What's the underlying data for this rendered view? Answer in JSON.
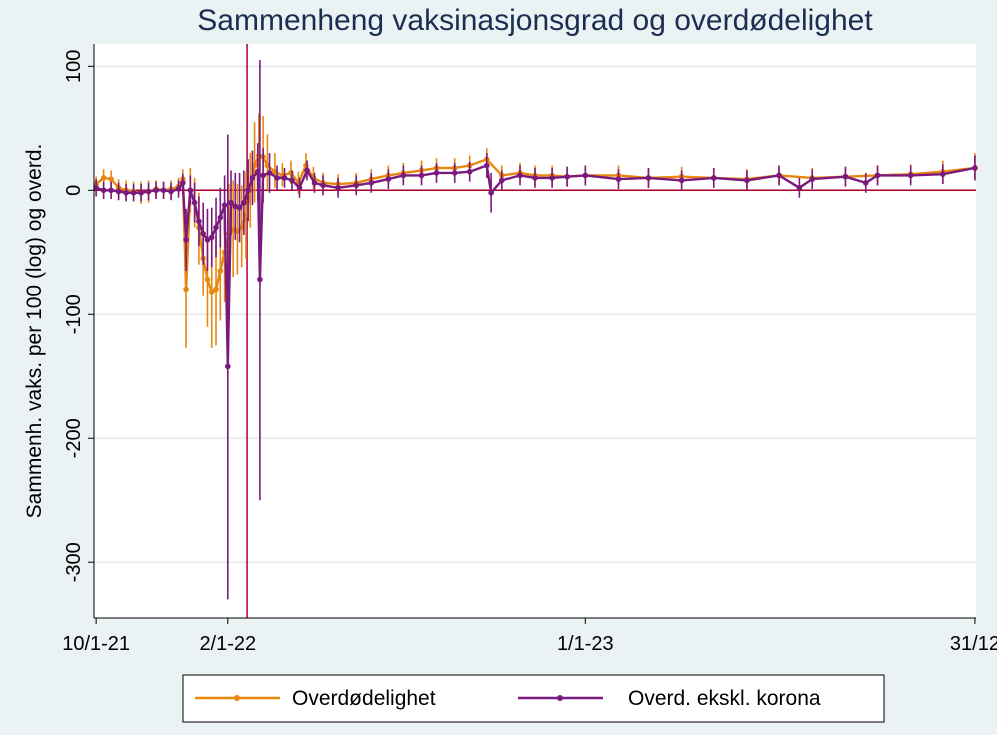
{
  "chart_data": {
    "type": "line",
    "title": "Sammenheng vaksinasjonsgrad og overdødelighet",
    "ylabel": "Sammenh. vaks. per 100 (log) og overd.",
    "xlabel": "",
    "x_start_label": "10/1-21",
    "ylim": [
      -345,
      118
    ],
    "y_ticks": [
      {
        "value": 100,
        "label": "100"
      },
      {
        "value": 0,
        "label": "0"
      },
      {
        "value": -100,
        "label": "-100"
      },
      {
        "value": -200,
        "label": "-200"
      },
      {
        "value": -300,
        "label": "-300"
      }
    ],
    "x_ticks": [
      {
        "value": "2021-10-01",
        "label": "10/1-21"
      },
      {
        "value": "2022-02-01",
        "label": "2/1-22"
      },
      {
        "value": "2023-01-01",
        "label": "1/1-23"
      },
      {
        "value": "2023-12-31",
        "label": "31/12"
      }
    ],
    "xlim": [
      "2021-09-29",
      "2024-01-01"
    ],
    "grid": true,
    "reference_lines": {
      "horizontal_y": 0,
      "vertical_x": "2022-02-19",
      "color": "#b0002a"
    },
    "legend_position": "bottom",
    "series": [
      {
        "name": "Overdødelighet",
        "color": "#e8870d",
        "points": [
          {
            "x": "2021-10-01",
            "y": 5,
            "lo": -1,
            "hi": 11
          },
          {
            "x": "2021-10-08",
            "y": 10,
            "lo": 3,
            "hi": 17
          },
          {
            "x": "2021-10-15",
            "y": 9,
            "lo": 2,
            "hi": 16
          },
          {
            "x": "2021-10-22",
            "y": 2,
            "lo": -5,
            "hi": 9
          },
          {
            "x": "2021-10-29",
            "y": 0,
            "lo": -8,
            "hi": 8
          },
          {
            "x": "2021-11-05",
            "y": -1,
            "lo": -9,
            "hi": 7
          },
          {
            "x": "2021-11-12",
            "y": -2,
            "lo": -11,
            "hi": 7
          },
          {
            "x": "2021-11-19",
            "y": -1,
            "lo": -10,
            "hi": 8
          },
          {
            "x": "2021-11-26",
            "y": 1,
            "lo": -6,
            "hi": 8
          },
          {
            "x": "2021-12-03",
            "y": 0,
            "lo": -7,
            "hi": 7
          },
          {
            "x": "2021-12-10",
            "y": 1,
            "lo": -6,
            "hi": 8
          },
          {
            "x": "2021-12-17",
            "y": 3,
            "lo": -4,
            "hi": 10
          },
          {
            "x": "2021-12-21",
            "y": 9,
            "lo": 1,
            "hi": 17
          },
          {
            "x": "2021-12-24",
            "y": -80,
            "lo": -127,
            "hi": -35
          },
          {
            "x": "2021-12-28",
            "y": 0,
            "lo": -18,
            "hi": 18
          },
          {
            "x": "2022-01-01",
            "y": -10,
            "lo": -30,
            "hi": 10
          },
          {
            "x": "2022-01-05",
            "y": -30,
            "lo": -60,
            "hi": -2
          },
          {
            "x": "2022-01-09",
            "y": -55,
            "lo": -85,
            "hi": -25
          },
          {
            "x": "2022-01-13",
            "y": -72,
            "lo": -110,
            "hi": -35
          },
          {
            "x": "2022-01-17",
            "y": -82,
            "lo": -127,
            "hi": -40
          },
          {
            "x": "2022-01-21",
            "y": -80,
            "lo": -125,
            "hi": -38
          },
          {
            "x": "2022-01-25",
            "y": -65,
            "lo": -105,
            "hi": -25
          },
          {
            "x": "2022-01-29",
            "y": -50,
            "lo": -90,
            "hi": -12
          },
          {
            "x": "2022-02-02",
            "y": -35,
            "lo": -75,
            "hi": 5
          },
          {
            "x": "2022-02-06",
            "y": -32,
            "lo": -70,
            "hi": 8
          },
          {
            "x": "2022-02-10",
            "y": -33,
            "lo": -68,
            "hi": 5
          },
          {
            "x": "2022-02-14",
            "y": -30,
            "lo": -62,
            "hi": 4
          },
          {
            "x": "2022-02-18",
            "y": -20,
            "lo": -55,
            "hi": 15
          },
          {
            "x": "2022-02-22",
            "y": 0,
            "lo": -30,
            "hi": 30
          },
          {
            "x": "2022-02-26",
            "y": 20,
            "lo": -10,
            "hi": 55
          },
          {
            "x": "2022-03-02",
            "y": 28,
            "lo": -5,
            "hi": 62
          },
          {
            "x": "2022-03-06",
            "y": 27,
            "lo": -3,
            "hi": 60
          },
          {
            "x": "2022-03-10",
            "y": 20,
            "lo": 0,
            "hi": 45
          },
          {
            "x": "2022-03-17",
            "y": 15,
            "lo": 2,
            "hi": 30
          },
          {
            "x": "2022-03-24",
            "y": 12,
            "lo": 3,
            "hi": 22
          },
          {
            "x": "2022-04-01",
            "y": 14,
            "lo": 5,
            "hi": 24
          },
          {
            "x": "2022-04-08",
            "y": 6,
            "lo": -3,
            "hi": 15
          },
          {
            "x": "2022-04-15",
            "y": 20,
            "lo": 10,
            "hi": 30
          },
          {
            "x": "2022-04-22",
            "y": 10,
            "lo": 1,
            "hi": 19
          },
          {
            "x": "2022-05-01",
            "y": 6,
            "lo": -2,
            "hi": 14
          },
          {
            "x": "2022-05-15",
            "y": 5,
            "lo": -3,
            "hi": 13
          },
          {
            "x": "2022-06-01",
            "y": 6,
            "lo": -2,
            "hi": 14
          },
          {
            "x": "2022-06-15",
            "y": 9,
            "lo": 1,
            "hi": 17
          },
          {
            "x": "2022-07-01",
            "y": 12,
            "lo": 4,
            "hi": 20
          },
          {
            "x": "2022-07-15",
            "y": 14,
            "lo": 6,
            "hi": 22
          },
          {
            "x": "2022-08-01",
            "y": 16,
            "lo": 8,
            "hi": 24
          },
          {
            "x": "2022-08-15",
            "y": 18,
            "lo": 10,
            "hi": 26
          },
          {
            "x": "2022-09-01",
            "y": 18,
            "lo": 10,
            "hi": 26
          },
          {
            "x": "2022-09-15",
            "y": 20,
            "lo": 12,
            "hi": 28
          },
          {
            "x": "2022-10-01",
            "y": 25,
            "lo": 16,
            "hi": 34
          },
          {
            "x": "2022-10-15",
            "y": 12,
            "lo": 4,
            "hi": 20
          },
          {
            "x": "2022-11-01",
            "y": 14,
            "lo": 6,
            "hi": 22
          },
          {
            "x": "2022-11-15",
            "y": 12,
            "lo": 4,
            "hi": 20
          },
          {
            "x": "2022-12-01",
            "y": 12,
            "lo": 4,
            "hi": 20
          },
          {
            "x": "2022-12-15",
            "y": 11,
            "lo": 3,
            "hi": 19
          },
          {
            "x": "2023-01-01",
            "y": 12,
            "lo": 4,
            "hi": 20
          },
          {
            "x": "2023-02-01",
            "y": 12,
            "lo": 4,
            "hi": 20
          },
          {
            "x": "2023-03-01",
            "y": 10,
            "lo": 2,
            "hi": 18
          },
          {
            "x": "2023-04-01",
            "y": 11,
            "lo": 3,
            "hi": 19
          },
          {
            "x": "2023-05-01",
            "y": 10,
            "lo": 2,
            "hi": 18
          },
          {
            "x": "2023-06-01",
            "y": 9,
            "lo": 1,
            "hi": 17
          },
          {
            "x": "2023-07-01",
            "y": 12,
            "lo": 4,
            "hi": 20
          },
          {
            "x": "2023-08-01",
            "y": 10,
            "lo": 2,
            "hi": 18
          },
          {
            "x": "2023-09-01",
            "y": 11,
            "lo": 3,
            "hi": 19
          },
          {
            "x": "2023-10-01",
            "y": 12,
            "lo": 4,
            "hi": 20
          },
          {
            "x": "2023-11-01",
            "y": 13,
            "lo": 5,
            "hi": 21
          },
          {
            "x": "2023-12-01",
            "y": 15,
            "lo": 6,
            "hi": 24
          },
          {
            "x": "2023-12-31",
            "y": 18,
            "lo": 8,
            "hi": 30
          }
        ]
      },
      {
        "name": "Overd. ekskl. korona",
        "color": "#7b1a7e",
        "points": [
          {
            "x": "2021-10-01",
            "y": 2,
            "lo": -5,
            "hi": 9
          },
          {
            "x": "2021-10-08",
            "y": 0,
            "lo": -7,
            "hi": 7
          },
          {
            "x": "2021-10-15",
            "y": 0,
            "lo": -7,
            "hi": 7
          },
          {
            "x": "2021-10-22",
            "y": -1,
            "lo": -8,
            "hi": 6
          },
          {
            "x": "2021-10-29",
            "y": -2,
            "lo": -9,
            "hi": 5
          },
          {
            "x": "2021-11-05",
            "y": -2,
            "lo": -9,
            "hi": 5
          },
          {
            "x": "2021-11-12",
            "y": -2,
            "lo": -9,
            "hi": 5
          },
          {
            "x": "2021-11-19",
            "y": -1,
            "lo": -8,
            "hi": 6
          },
          {
            "x": "2021-11-26",
            "y": 0,
            "lo": -7,
            "hi": 7
          },
          {
            "x": "2021-12-03",
            "y": 0,
            "lo": -7,
            "hi": 7
          },
          {
            "x": "2021-12-10",
            "y": -1,
            "lo": -8,
            "hi": 6
          },
          {
            "x": "2021-12-17",
            "y": 1,
            "lo": -6,
            "hi": 8
          },
          {
            "x": "2021-12-21",
            "y": 6,
            "lo": -1,
            "hi": 13
          },
          {
            "x": "2021-12-24",
            "y": -40,
            "lo": -65,
            "hi": -15
          },
          {
            "x": "2021-12-28",
            "y": 0,
            "lo": -12,
            "hi": 12
          },
          {
            "x": "2022-01-01",
            "y": -10,
            "lo": -26,
            "hi": 6
          },
          {
            "x": "2022-01-05",
            "y": -25,
            "lo": -45,
            "hi": -5
          },
          {
            "x": "2022-01-09",
            "y": -35,
            "lo": -60,
            "hi": -10
          },
          {
            "x": "2022-01-13",
            "y": -40,
            "lo": -65,
            "hi": -15
          },
          {
            "x": "2022-01-17",
            "y": -38,
            "lo": -62,
            "hi": -14
          },
          {
            "x": "2022-01-21",
            "y": -30,
            "lo": -54,
            "hi": -6
          },
          {
            "x": "2022-01-25",
            "y": -22,
            "lo": -46,
            "hi": 2
          },
          {
            "x": "2022-01-29",
            "y": -12,
            "lo": -36,
            "hi": 12
          },
          {
            "x": "2022-02-01",
            "y": -142,
            "lo": -330,
            "hi": 45
          },
          {
            "x": "2022-02-04",
            "y": -10,
            "lo": -36,
            "hi": 16
          },
          {
            "x": "2022-02-08",
            "y": -13,
            "lo": -40,
            "hi": 14
          },
          {
            "x": "2022-02-12",
            "y": -14,
            "lo": -42,
            "hi": 14
          },
          {
            "x": "2022-02-16",
            "y": -10,
            "lo": -36,
            "hi": 16
          },
          {
            "x": "2022-02-20",
            "y": 0,
            "lo": -25,
            "hi": 25
          },
          {
            "x": "2022-02-24",
            "y": 10,
            "lo": -12,
            "hi": 32
          },
          {
            "x": "2022-03-01",
            "y": 15,
            "lo": -8,
            "hi": 38
          },
          {
            "x": "2022-03-03",
            "y": -72,
            "lo": -250,
            "hi": 105
          },
          {
            "x": "2022-03-06",
            "y": 12,
            "lo": -10,
            "hi": 34
          },
          {
            "x": "2022-03-12",
            "y": 14,
            "lo": -2,
            "hi": 30
          },
          {
            "x": "2022-03-19",
            "y": 10,
            "lo": 0,
            "hi": 20
          },
          {
            "x": "2022-03-26",
            "y": 10,
            "lo": 2,
            "hi": 18
          },
          {
            "x": "2022-04-02",
            "y": 8,
            "lo": 0,
            "hi": 16
          },
          {
            "x": "2022-04-09",
            "y": 2,
            "lo": -6,
            "hi": 10
          },
          {
            "x": "2022-04-16",
            "y": 16,
            "lo": 8,
            "hi": 24
          },
          {
            "x": "2022-04-23",
            "y": 6,
            "lo": -2,
            "hi": 14
          },
          {
            "x": "2022-05-01",
            "y": 4,
            "lo": -4,
            "hi": 12
          },
          {
            "x": "2022-05-15",
            "y": 2,
            "lo": -6,
            "hi": 10
          },
          {
            "x": "2022-06-01",
            "y": 4,
            "lo": -4,
            "hi": 12
          },
          {
            "x": "2022-06-15",
            "y": 6,
            "lo": -2,
            "hi": 14
          },
          {
            "x": "2022-07-01",
            "y": 9,
            "lo": 1,
            "hi": 17
          },
          {
            "x": "2022-07-15",
            "y": 12,
            "lo": 4,
            "hi": 20
          },
          {
            "x": "2022-08-01",
            "y": 12,
            "lo": 4,
            "hi": 20
          },
          {
            "x": "2022-08-15",
            "y": 14,
            "lo": 6,
            "hi": 22
          },
          {
            "x": "2022-09-01",
            "y": 14,
            "lo": 6,
            "hi": 22
          },
          {
            "x": "2022-09-15",
            "y": 15,
            "lo": 7,
            "hi": 23
          },
          {
            "x": "2022-10-01",
            "y": 20,
            "lo": 10,
            "hi": 30
          },
          {
            "x": "2022-10-05",
            "y": -2,
            "lo": -18,
            "hi": 14
          },
          {
            "x": "2022-10-15",
            "y": 8,
            "lo": 0,
            "hi": 16
          },
          {
            "x": "2022-11-01",
            "y": 12,
            "lo": 4,
            "hi": 20
          },
          {
            "x": "2022-11-15",
            "y": 10,
            "lo": 2,
            "hi": 18
          },
          {
            "x": "2022-12-01",
            "y": 10,
            "lo": 2,
            "hi": 18
          },
          {
            "x": "2022-12-15",
            "y": 11,
            "lo": 3,
            "hi": 19
          },
          {
            "x": "2023-01-01",
            "y": 12,
            "lo": 4,
            "hi": 20
          },
          {
            "x": "2023-02-01",
            "y": 9,
            "lo": 1,
            "hi": 17
          },
          {
            "x": "2023-03-01",
            "y": 10,
            "lo": 2,
            "hi": 18
          },
          {
            "x": "2023-04-01",
            "y": 8,
            "lo": 0,
            "hi": 16
          },
          {
            "x": "2023-05-01",
            "y": 10,
            "lo": 2,
            "hi": 18
          },
          {
            "x": "2023-06-01",
            "y": 8,
            "lo": 0,
            "hi": 16
          },
          {
            "x": "2023-07-01",
            "y": 12,
            "lo": 4,
            "hi": 20
          },
          {
            "x": "2023-07-20",
            "y": 2,
            "lo": -6,
            "hi": 10
          },
          {
            "x": "2023-08-01",
            "y": 9,
            "lo": 1,
            "hi": 17
          },
          {
            "x": "2023-09-01",
            "y": 11,
            "lo": 3,
            "hi": 19
          },
          {
            "x": "2023-09-20",
            "y": 6,
            "lo": -2,
            "hi": 14
          },
          {
            "x": "2023-10-01",
            "y": 12,
            "lo": 4,
            "hi": 20
          },
          {
            "x": "2023-11-01",
            "y": 12,
            "lo": 4,
            "hi": 20
          },
          {
            "x": "2023-12-01",
            "y": 13,
            "lo": 5,
            "hi": 21
          },
          {
            "x": "2023-12-31",
            "y": 18,
            "lo": 8,
            "hi": 28
          }
        ]
      }
    ]
  }
}
